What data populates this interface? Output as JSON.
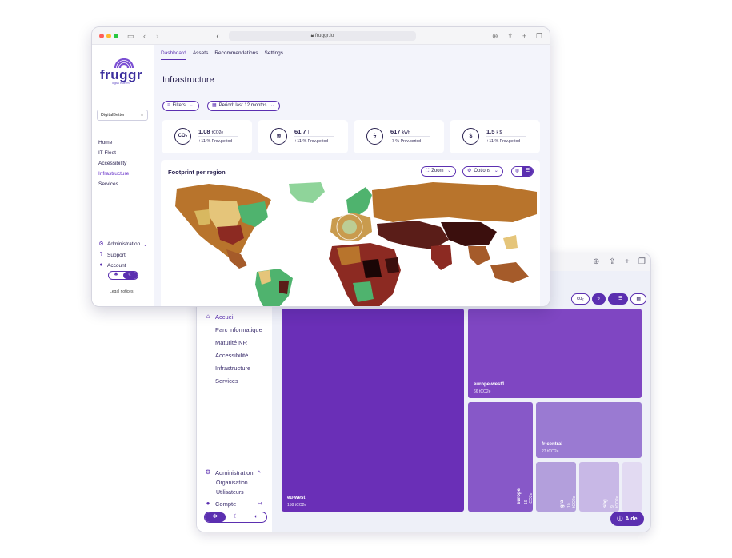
{
  "back_window": {
    "sidebar": {
      "items": [
        {
          "label": "Accueil"
        },
        {
          "label": "Parc informatique"
        },
        {
          "label": "Maturité NR"
        },
        {
          "label": "Accessibilité"
        },
        {
          "label": "Infrastructure"
        },
        {
          "label": "Services"
        }
      ],
      "admin_label": "Administration",
      "admin_sub": [
        "Organisation",
        "Utilisateurs"
      ],
      "account_label": "Compte"
    },
    "treemap": [
      {
        "name": "eu-west",
        "value": "158 tCO2e"
      },
      {
        "name": "europe-west1",
        "value": "66 tCO2e"
      },
      {
        "name": "fr-central",
        "value": "27 tCO2e"
      },
      {
        "name": "europe",
        "value": "19 tCO2e"
      },
      {
        "name": "gra",
        "value": "10 tCO2e"
      },
      {
        "name": "sbg",
        "value": "9 tCO2e"
      }
    ],
    "help_label": "Aide"
  },
  "front_window": {
    "url": "fruggr.io",
    "logo": {
      "text": "fruggr",
      "tagline": "digital esteem"
    },
    "org_select": "DigitalBetter",
    "sidebar": {
      "items": [
        "Home",
        "IT Fleet",
        "Accessibility",
        "Infrastructure",
        "Services"
      ],
      "active": "Infrastructure",
      "admin_label": "Administration",
      "support_label": "Support",
      "account_label": "Account",
      "legal": "Legal notices"
    },
    "tabs": [
      "Dashboard",
      "Assets",
      "Recommendations",
      "Settings"
    ],
    "active_tab": "Dashboard",
    "page_title": "Infrastructure",
    "filters_label": "Filters",
    "period_label": "Period: last 12 months",
    "kpis": [
      {
        "icon": "CO₂",
        "value": "1.08",
        "unit": "tCO2e",
        "trend": "+11 %",
        "trend_label": "Prev.period"
      },
      {
        "icon": "≋",
        "value": "61.7",
        "unit": "l",
        "trend": "+11 %",
        "trend_label": "Prev.period"
      },
      {
        "icon": "ϟ",
        "value": "617",
        "unit": "kWh",
        "trend": "-7 %",
        "trend_label": "Prev.period"
      },
      {
        "icon": "$",
        "value": "1.5",
        "unit": "k $",
        "trend": "+11 %",
        "trend_label": "Prev.period"
      }
    ],
    "map": {
      "title": "Footprint per region",
      "zoom_label": "Zoom",
      "options_label": "Options"
    }
  },
  "colors": {
    "accent": "#5b2fb0",
    "tile_dark": "#6a2fb7",
    "tile_mid": "#7f46c2",
    "tile_light": "#a58bd8"
  }
}
